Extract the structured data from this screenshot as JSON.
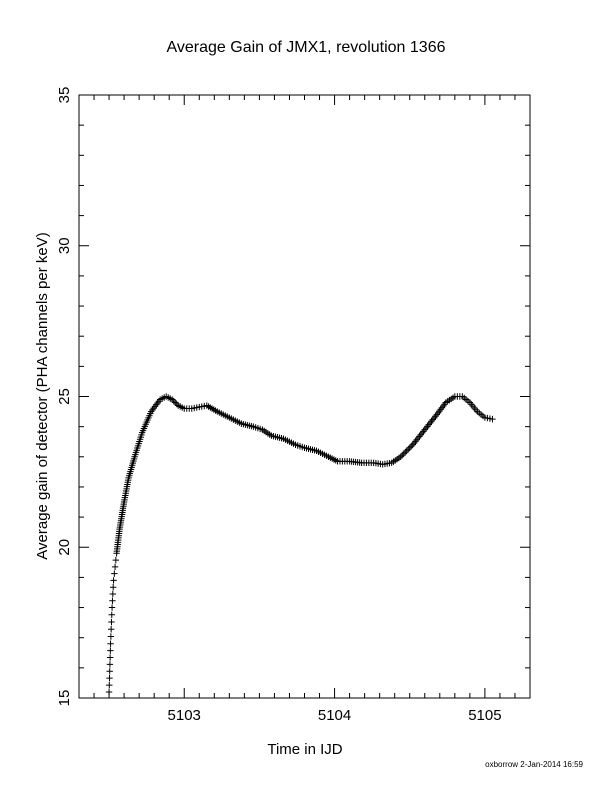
{
  "chart_data": {
    "type": "scatter",
    "title": "Average Gain of JMX1, revolution 1366",
    "xlabel": "Time in IJD",
    "ylabel": "Average gain of detector (PHA channels per keV)",
    "xlim": [
      5102.3,
      5105.3
    ],
    "ylim": [
      15,
      35
    ],
    "xticks": [
      5103,
      5104,
      5105
    ],
    "yticks": [
      15,
      20,
      25,
      30,
      35
    ],
    "xtick_labels": [
      "5103",
      "5104",
      "5105"
    ],
    "ytick_labels": [
      "15",
      "20",
      "25",
      "30",
      "35"
    ],
    "marker": "plus",
    "grid": false,
    "x": [
      5102.5,
      5102.51,
      5102.52,
      5102.53,
      5102.55,
      5102.57,
      5102.6,
      5102.63,
      5102.67,
      5102.72,
      5102.78,
      5102.84,
      5102.88,
      5102.92,
      5102.96,
      5103.0,
      5103.05,
      5103.1,
      5103.15,
      5103.22,
      5103.3,
      5103.38,
      5103.46,
      5103.52,
      5103.58,
      5103.66,
      5103.74,
      5103.8,
      5103.88,
      5103.96,
      5104.02,
      5104.1,
      5104.18,
      5104.26,
      5104.32,
      5104.38,
      5104.44,
      5104.52,
      5104.6,
      5104.68,
      5104.74,
      5104.8,
      5104.85,
      5104.9,
      5104.95,
      5105.0,
      5105.05
    ],
    "y": [
      15.2,
      16.8,
      18.0,
      18.9,
      19.8,
      20.6,
      21.5,
      22.3,
      23.0,
      23.8,
      24.5,
      24.9,
      25.0,
      24.9,
      24.7,
      24.6,
      24.6,
      24.65,
      24.7,
      24.5,
      24.3,
      24.1,
      24.0,
      23.9,
      23.7,
      23.6,
      23.4,
      23.3,
      23.2,
      23.0,
      22.85,
      22.85,
      22.8,
      22.8,
      22.75,
      22.8,
      23.0,
      23.4,
      23.9,
      24.4,
      24.8,
      25.0,
      25.0,
      24.8,
      24.5,
      24.3,
      24.25
    ]
  },
  "footer": "oxborrow  2-Jan-2014 16:59"
}
